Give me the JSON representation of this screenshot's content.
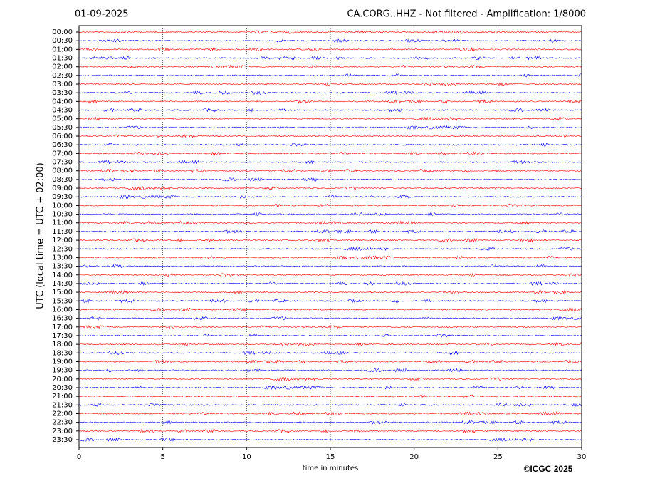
{
  "chart_data": {
    "type": "helicorder",
    "title_left": "01-09-2025",
    "title": "CA.CORG..HHZ - Not filtered - Amplification: 1/8000",
    "ylabel": "UTC (local time = UTC + 02:00)",
    "xlabel": "time in minutes",
    "credit": "©ICGC 2025",
    "categories": [
      "00:00",
      "00:30",
      "01:00",
      "01:30",
      "02:00",
      "02:30",
      "03:00",
      "03:30",
      "04:00",
      "04:30",
      "05:00",
      "05:30",
      "06:00",
      "06:30",
      "07:00",
      "07:30",
      "08:00",
      "08:30",
      "09:00",
      "09:30",
      "10:00",
      "10:30",
      "11:00",
      "11:30",
      "12:00",
      "12:30",
      "13:00",
      "13:30",
      "14:00",
      "14:30",
      "15:00",
      "15:30",
      "16:00",
      "16:30",
      "17:00",
      "17:30",
      "18:00",
      "18:30",
      "19:00",
      "19:30",
      "20:00",
      "20:30",
      "21:00",
      "21:30",
      "22:00",
      "22:30",
      "23:00",
      "23:30"
    ],
    "colors": [
      "#ff0000",
      "#0000ff"
    ],
    "xlim": [
      0,
      30
    ],
    "xticks": [
      0,
      5,
      10,
      15,
      20,
      25,
      30
    ],
    "grid": true
  }
}
